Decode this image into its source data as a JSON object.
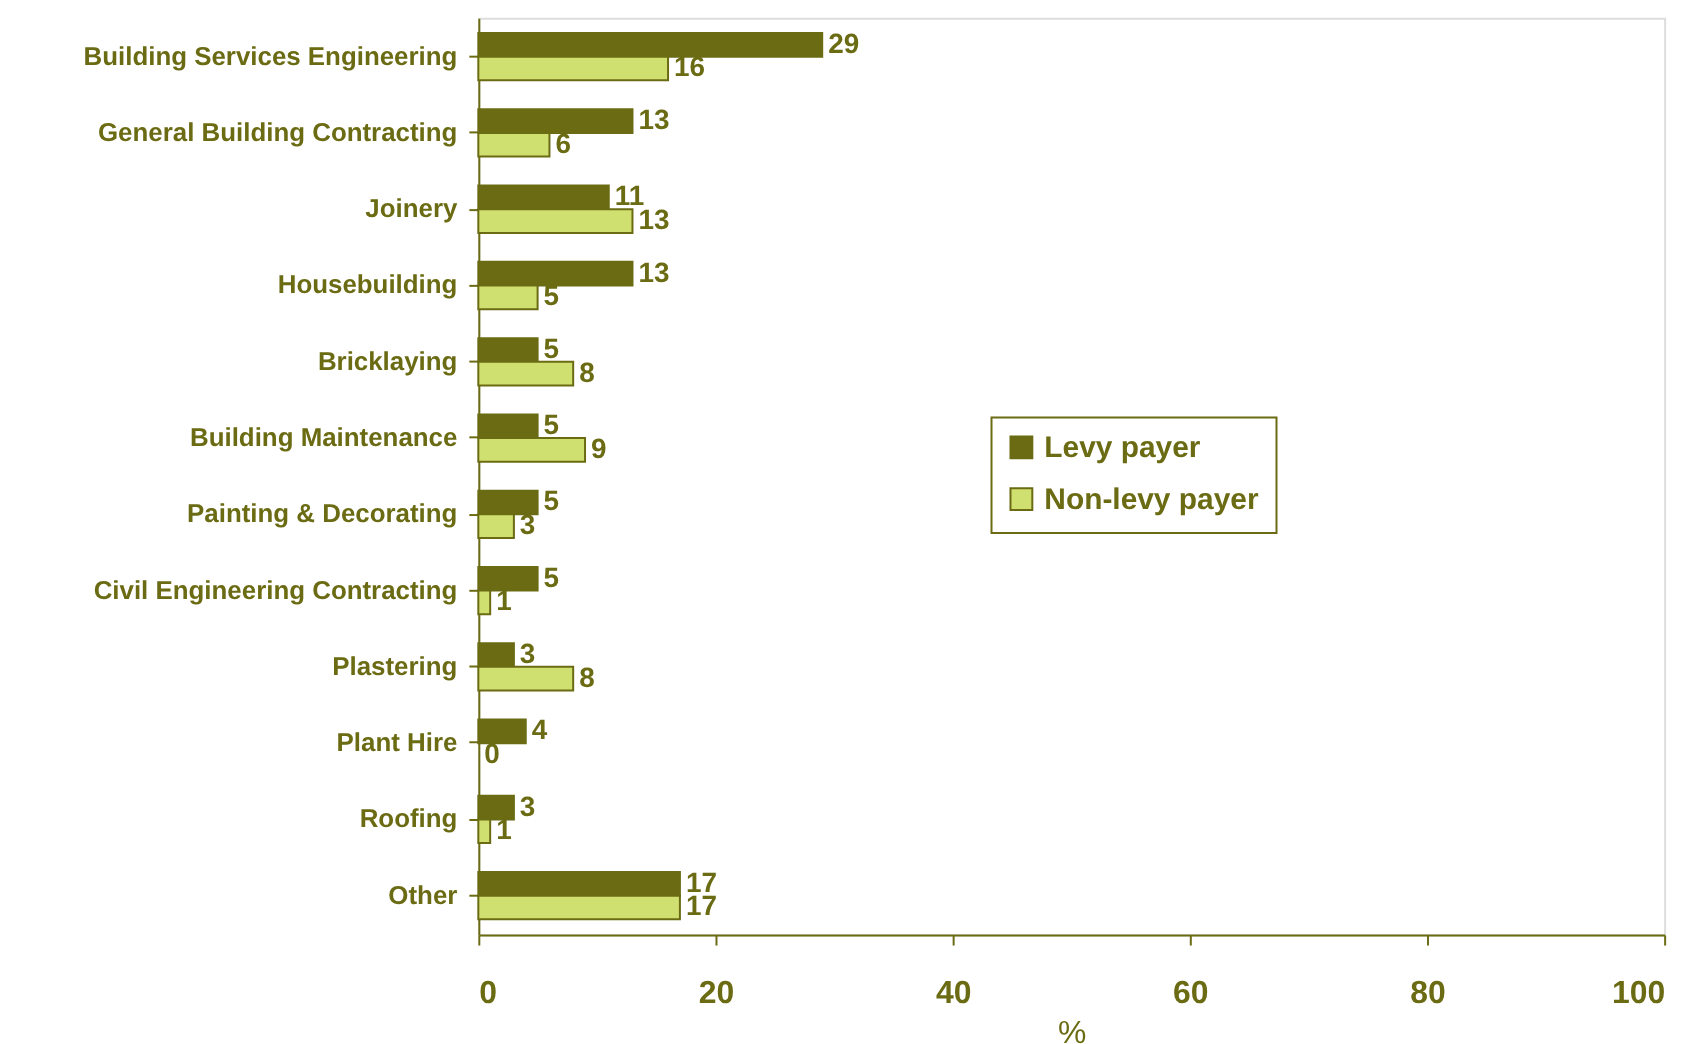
{
  "chart_data": {
    "type": "bar",
    "orientation": "horizontal",
    "xlabel": "%",
    "categories": [
      "Building Services Engineering",
      "General Building Contracting",
      "Joinery",
      "Housebuilding",
      "Bricklaying",
      "Building Maintenance",
      "Painting & Decorating",
      "Civil Engineering Contracting",
      "Plastering",
      "Plant Hire",
      "Roofing",
      "Other"
    ],
    "series": [
      {
        "name": "Levy payer",
        "color": "#6b6b14",
        "values": [
          29,
          13,
          11,
          13,
          5,
          5,
          5,
          5,
          3,
          4,
          3,
          17
        ]
      },
      {
        "name": "Non-levy payer",
        "color": "#d0e070",
        "values": [
          16,
          6,
          13,
          5,
          8,
          9,
          3,
          1,
          8,
          0,
          1,
          17
        ]
      }
    ],
    "xlim": [
      0,
      100
    ],
    "xticks": [
      0,
      20,
      40,
      60,
      80,
      100
    ],
    "data_labels": true,
    "grid": false,
    "legend": "right"
  }
}
